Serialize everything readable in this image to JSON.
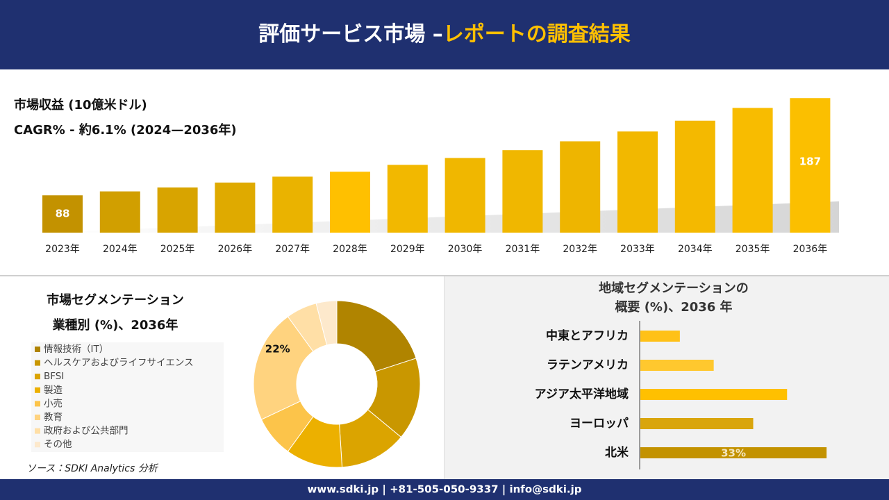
{
  "header": {
    "title_main": "評価サービス市場 –",
    "title_accent": "レポートの調査結果"
  },
  "chart_data": [
    {
      "type": "bar",
      "title": "市場収益 (10億米ドル)",
      "subtitle": "CAGR% - 約6.1% (2024—2036年)",
      "categories": [
        "2023年",
        "2024年",
        "2025年",
        "2026年",
        "2027年",
        "2028年",
        "2029年",
        "2030年",
        "2031年",
        "2032年",
        "2033年",
        "2034年",
        "2035年",
        "2036年"
      ],
      "values": [
        88,
        92,
        96,
        101,
        107,
        112,
        119,
        126,
        134,
        143,
        153,
        164,
        177,
        187
      ],
      "value_labels": [
        "88",
        null,
        null,
        null,
        null,
        null,
        null,
        null,
        null,
        null,
        null,
        null,
        null,
        "187"
      ],
      "colors": [
        "#c39200",
        "#d19f00",
        "#d8a400",
        "#dfaa00",
        "#eab300",
        "#ffc000",
        "#f2b800",
        "#f0b700",
        "#f0b700",
        "#eeb500",
        "#f2b800",
        "#f4b900",
        "#f8bc00",
        "#fbbf00"
      ],
      "ylim": [
        50,
        190
      ]
    },
    {
      "type": "donut",
      "title": "市場セグメンテーション",
      "subtitle": "業種別 (%)、2036年",
      "categories": [
        "情報技術（IT）",
        "ヘルスケアおよびライフサイエンス",
        "BFSI",
        "製造",
        "小売",
        "教育",
        "政府および公共部門",
        "その他"
      ],
      "values": [
        20,
        16,
        13,
        11,
        8,
        22,
        6,
        4
      ],
      "value_labels": [
        null,
        null,
        null,
        null,
        null,
        "22%",
        null,
        null
      ],
      "colors": [
        "#b08400",
        "#c99700",
        "#dba400",
        "#ecb000",
        "#fcc44a",
        "#ffd37f",
        "#ffdfa6",
        "#fde9cc"
      ]
    },
    {
      "type": "hbar",
      "title": [
        "地域セグメンテーションの",
        "概要 (%)、2036 年"
      ],
      "categories": [
        "中東とアフリカ",
        "ラテンアメリカ",
        "アジア太平洋地域",
        "ヨーロッパ",
        "北米"
      ],
      "values": [
        7,
        13,
        26,
        20,
        33
      ],
      "value_labels": [
        null,
        null,
        null,
        null,
        "33%"
      ],
      "colors": [
        "#ffc117",
        "#ffc82e",
        "#ffc000",
        "#d9a50c",
        "#c39200"
      ],
      "xlim": [
        0,
        40
      ]
    }
  ],
  "source": "ソース：SDKI Analytics 分析",
  "footer": "www.sdki.jp | +81-505-050-9337 | info@sdki.jp"
}
